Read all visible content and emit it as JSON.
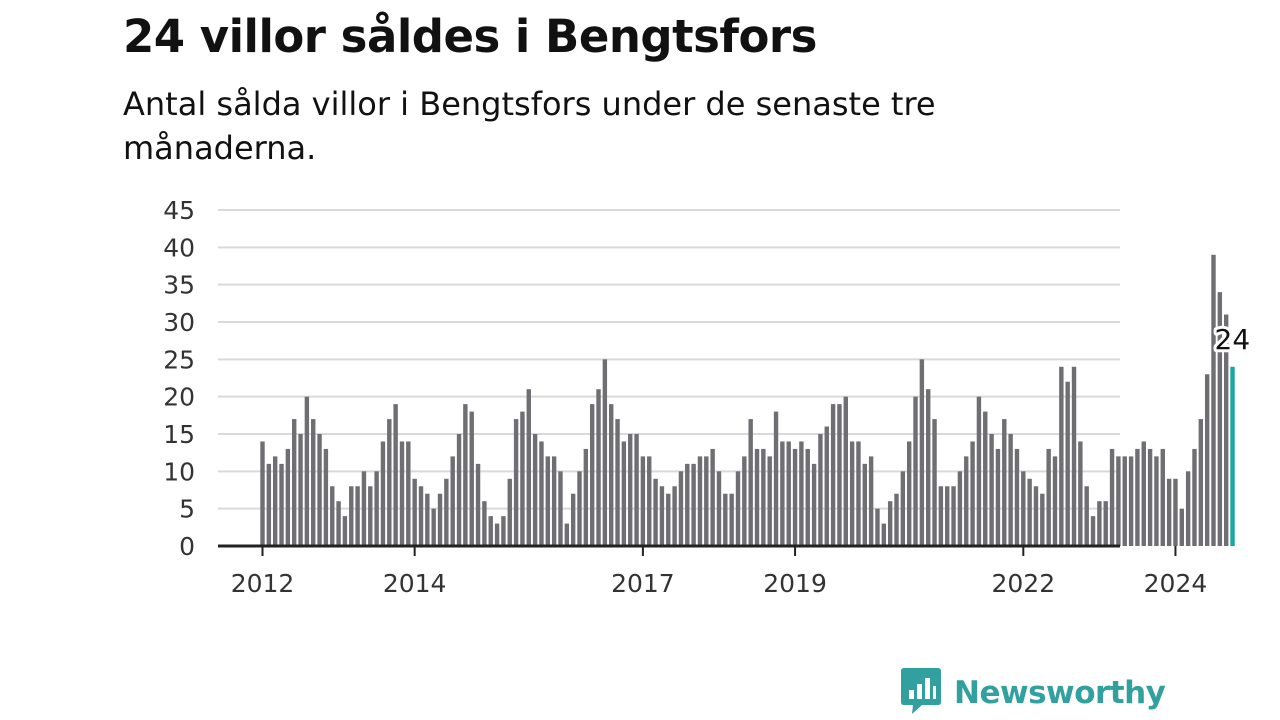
{
  "title": "24 villor såldes i Bengtsfors",
  "subtitle": "Antal sålda villor i Bengtsfors under de senaste tre månaderna.",
  "brand": {
    "name": "Newsworthy",
    "logo_icon": "newsworthy-bar-chart-icon",
    "color": "#33a0a0"
  },
  "colors": {
    "bar": "#6e6e73",
    "highlight": "#1aa6a6",
    "grid": "#d9d9d9",
    "axis": "#222222"
  },
  "chart_data": {
    "type": "bar",
    "title": "24 villor såldes i Bengtsfors",
    "xlabel": "",
    "ylabel": "",
    "ylim": [
      0,
      45
    ],
    "yticks": [
      0,
      5,
      10,
      15,
      20,
      25,
      30,
      35,
      40,
      45
    ],
    "grid": true,
    "x_start": "2012-01",
    "frequency": "monthly",
    "xtick_labels": [
      {
        "label": "2012",
        "month": "2012-01"
      },
      {
        "label": "2014",
        "month": "2014-01"
      },
      {
        "label": "2017",
        "month": "2017-01"
      },
      {
        "label": "2019",
        "month": "2019-01"
      },
      {
        "label": "2022",
        "month": "2022-01"
      },
      {
        "label": "2024",
        "month": "2024-01"
      }
    ],
    "values": [
      14,
      11,
      12,
      11,
      13,
      17,
      15,
      20,
      17,
      15,
      13,
      8,
      6,
      4,
      8,
      8,
      10,
      8,
      10,
      14,
      17,
      19,
      14,
      14,
      9,
      8,
      7,
      5,
      7,
      9,
      12,
      15,
      19,
      18,
      11,
      6,
      4,
      3,
      4,
      9,
      17,
      18,
      21,
      15,
      14,
      12,
      12,
      10,
      3,
      7,
      10,
      13,
      19,
      21,
      25,
      19,
      17,
      14,
      15,
      15,
      12,
      12,
      9,
      8,
      7,
      8,
      10,
      11,
      11,
      12,
      12,
      13,
      10,
      7,
      7,
      10,
      12,
      17,
      13,
      13,
      12,
      18,
      14,
      14,
      13,
      14,
      13,
      11,
      15,
      16,
      19,
      19,
      20,
      14,
      14,
      11,
      12,
      5,
      3,
      6,
      7,
      10,
      14,
      20,
      25,
      21,
      17,
      8,
      8,
      8,
      10,
      12,
      14,
      20,
      18,
      15,
      13,
      17,
      15,
      13,
      10,
      9,
      8,
      7,
      13,
      12,
      24,
      22,
      24,
      14,
      8,
      4,
      6,
      6,
      13,
      12,
      12,
      12,
      13,
      14,
      13,
      12,
      13,
      9,
      9,
      5,
      10,
      13,
      17,
      23,
      39,
      34,
      31,
      24
    ],
    "highlight": {
      "value": 24,
      "label": "24",
      "index": "last"
    }
  }
}
